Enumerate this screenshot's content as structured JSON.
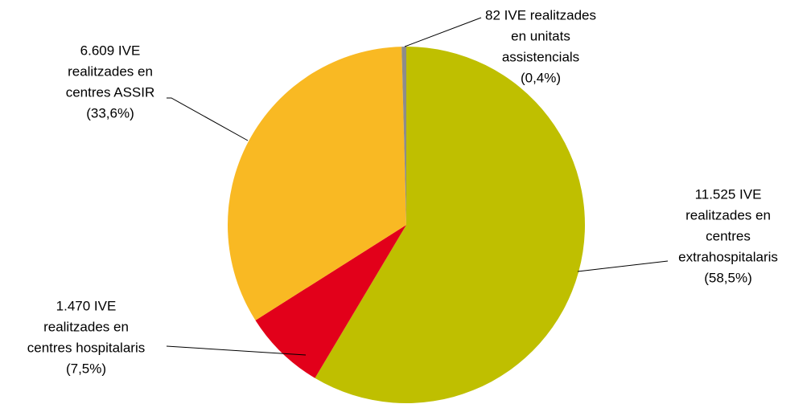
{
  "chart_data": {
    "type": "pie",
    "values": [
      11525,
      1470,
      6609,
      82
    ],
    "colors": [
      "#bfbf00",
      "#e2001a",
      "#f9b923",
      "#8c8c8c"
    ],
    "labels": [
      [
        "11.525 IVE",
        "realitzades en",
        "centres",
        "extrahospitalaris",
        "(58,5%)"
      ],
      [
        "1.470 IVE",
        "realitzades en",
        "centres hospitalaris",
        "(7,5%)"
      ],
      [
        "6.609 IVE",
        "realitzades en",
        "centres ASSIR",
        "(33,6%)"
      ],
      [
        "82 IVE realitzades",
        "en unitats",
        "assistencials",
        "(0,4%)"
      ]
    ]
  }
}
